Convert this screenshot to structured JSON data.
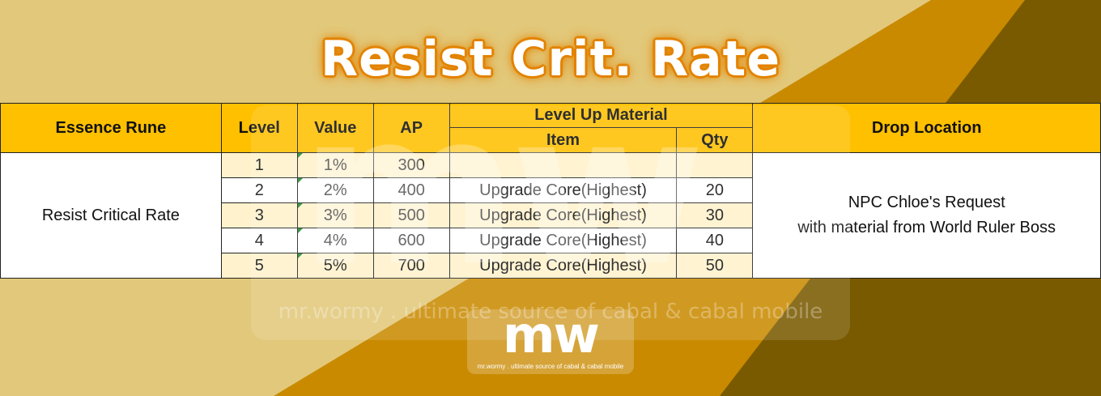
{
  "colors": {
    "background": "#e2c87a",
    "orange": "#c98a00",
    "brown": "#7a5a00",
    "header": "#ffc000",
    "row_alt": "#fff2cc",
    "title_outline": "#e38300"
  },
  "title": "Resist Crit. Rate",
  "table": {
    "headers": {
      "essence_rune": "Essence Rune",
      "level": "Level",
      "value": "Value",
      "ap": "AP",
      "material": "Level Up Material",
      "item": "Item",
      "qty": "Qty",
      "drop": "Drop Location"
    },
    "rune_name": "Resist Critical Rate",
    "drop_line1": "NPC Chloe's Request",
    "drop_line2": "with material from World Ruler Boss",
    "rows": [
      {
        "level": "1",
        "value": "1%",
        "ap": "300",
        "item": "",
        "qty": ""
      },
      {
        "level": "2",
        "value": "2%",
        "ap": "400",
        "item": "Upgrade Core(Highest)",
        "qty": "20"
      },
      {
        "level": "3",
        "value": "3%",
        "ap": "500",
        "item": "Upgrade Core(Highest)",
        "qty": "30"
      },
      {
        "level": "4",
        "value": "4%",
        "ap": "600",
        "item": "Upgrade Core(Highest)",
        "qty": "40"
      },
      {
        "level": "5",
        "value": "5%",
        "ap": "700",
        "item": "Upgrade Core(Highest)",
        "qty": "50"
      }
    ]
  },
  "watermark": {
    "logo": "mw",
    "tagline": "mr.wormy . ultimate source of cabal & cabal mobile"
  }
}
